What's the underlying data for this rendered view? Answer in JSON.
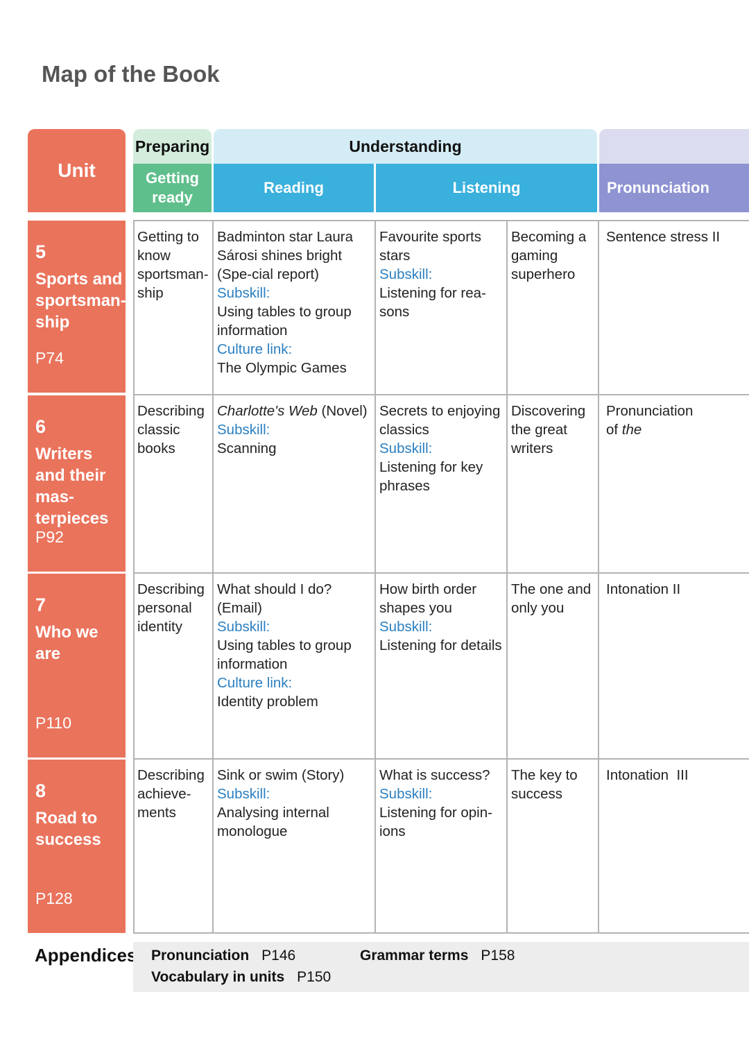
{
  "title": "Map of the Book",
  "header": {
    "unit": "Unit",
    "preparing": "Preparing",
    "getting_ready": "Getting ready",
    "understanding": "Understanding",
    "reading": "Reading",
    "listening": "Listening",
    "pronunciation": "Pronunciation"
  },
  "units": [
    {
      "number": "5",
      "title": "Sports and sportsman-ship",
      "page": "P74",
      "getting_ready": "Getting to know sportsman-ship",
      "reading": {
        "title": "Badminton star Laura Sárosi shines bright (Spe-cial report)",
        "subskill_label": "Subskill:",
        "subskill": "Using tables to group information",
        "culture_label": "Culture link:",
        "culture": "The Olympic Games"
      },
      "listening1": {
        "title": "Favourite sports stars",
        "subskill_label": "Subskill:",
        "subskill": "Listening for rea-sons"
      },
      "listening2": "Becoming a gaming superhero",
      "pronunciation": "Sentence stress II"
    },
    {
      "number": "6",
      "title": "Writers and their mas-terpieces",
      "page": "P92",
      "getting_ready": "Describing classic books",
      "reading": {
        "title_italic": "Charlotte's Web",
        "title_rest": " (Novel)",
        "subskill_label": "Subskill:",
        "subskill": "Scanning"
      },
      "listening1": {
        "title": "Secrets to enjoying classics",
        "subskill_label": "Subskill:",
        "subskill": "Listening for key phrases"
      },
      "listening2": "Discovering the great writers",
      "pronunciation": "Pronunciation",
      "pronunciation_prefix": "of ",
      "pronunciation_italic": "the"
    },
    {
      "number": "7",
      "title": "Who we are",
      "page": "P110",
      "getting_ready": "Describing personal identity",
      "reading": {
        "title": "What should I do? (Email)",
        "subskill_label": "Subskill:",
        "subskill": "Using tables to group information",
        "culture_label": "Culture link:",
        "culture": "Identity problem"
      },
      "listening1": {
        "title": "How birth order shapes you",
        "subskill_label": "Subskill:",
        "subskill": "Listening for details"
      },
      "listening2": "The one and only you",
      "pronunciation": "Intonation II"
    },
    {
      "number": "8",
      "title": "Road to success",
      "page": "P128",
      "getting_ready": "Describing achieve-ments",
      "reading": {
        "title": "Sink or swim (Story)",
        "subskill_label": "Subskill:",
        "subskill": "Analysing internal monologue"
      },
      "listening1": {
        "title": "What is success?",
        "subskill_label": "Subskill:",
        "subskill": "Listening for opin-ions"
      },
      "listening2": "The key to success",
      "pronunciation": "Intonation  III"
    }
  ],
  "appendices": {
    "label": "Appendices",
    "pronunciation": {
      "label": "Pronunciation",
      "page": "P146"
    },
    "vocabulary": {
      "label": "Vocabulary in units",
      "page": "P150"
    },
    "grammar": {
      "label": "Grammar terms",
      "page": "P158"
    }
  }
}
